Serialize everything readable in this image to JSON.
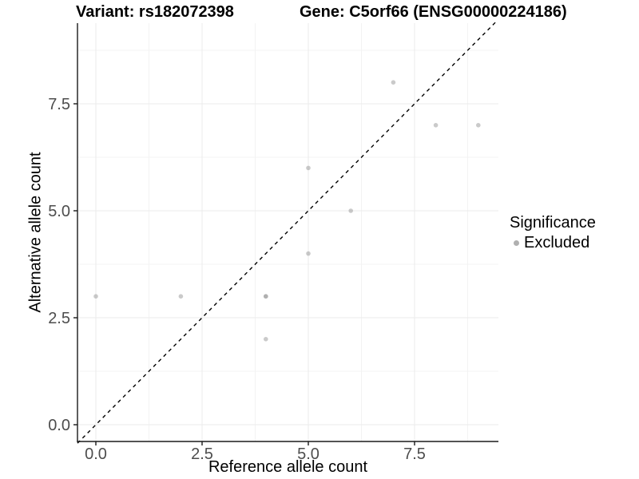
{
  "header": {
    "variant_title": "Variant: rs182072398",
    "gene_title": "Gene: C5orf66 (ENSG00000224186)"
  },
  "chart_data": {
    "type": "scatter",
    "title": "Variant: rs182072398   Gene: C5orf66 (ENSG00000224186)",
    "xlabel": "Reference allele count",
    "ylabel": "Alternative allele count",
    "xlim": [
      -0.45,
      9.45
    ],
    "ylim": [
      -0.45,
      9.45
    ],
    "x_ticks": [
      {
        "value": 0,
        "label": "0.0"
      },
      {
        "value": 2.5,
        "label": "2.5"
      },
      {
        "value": 5,
        "label": "5.0"
      },
      {
        "value": 7.5,
        "label": "7.5"
      }
    ],
    "y_ticks": [
      {
        "value": 0,
        "label": "0.0"
      },
      {
        "value": 2.5,
        "label": "2.5"
      },
      {
        "value": 5,
        "label": "5.0"
      },
      {
        "value": 7.5,
        "label": "7.5"
      }
    ],
    "x_minor_ticks": [
      1.25,
      3.75,
      6.25,
      8.75
    ],
    "y_minor_ticks": [
      1.25,
      3.75,
      6.25,
      8.75
    ],
    "grid": {
      "major": true,
      "minor": true
    },
    "points": [
      {
        "x": 0,
        "y": 3,
        "count": 1
      },
      {
        "x": 2,
        "y": 3,
        "count": 1
      },
      {
        "x": 4,
        "y": 3,
        "count": 2
      },
      {
        "x": 4,
        "y": 2,
        "count": 1
      },
      {
        "x": 5,
        "y": 4,
        "count": 1
      },
      {
        "x": 5,
        "y": 6,
        "count": 1
      },
      {
        "x": 6,
        "y": 5,
        "count": 1
      },
      {
        "x": 7,
        "y": 8,
        "count": 1
      },
      {
        "x": 8,
        "y": 7,
        "count": 1
      },
      {
        "x": 9,
        "y": 7,
        "count": 1
      }
    ],
    "diagonal_line": {
      "slope": 1,
      "intercept": 0,
      "style": "dashed",
      "color": "#000000"
    },
    "legend": {
      "position": "right",
      "title": "Significance",
      "entries": [
        {
          "label": "Excluded",
          "color": "#b0b0b0"
        }
      ]
    },
    "colors": {
      "point": "#969696",
      "point_alpha": 0.5,
      "grid_major": "#ebebeb",
      "grid_minor": "#f3f3f3",
      "axis_line": "#1a1a1a",
      "tick_label": "#4d4d4d",
      "diagonal": "#000000"
    }
  }
}
